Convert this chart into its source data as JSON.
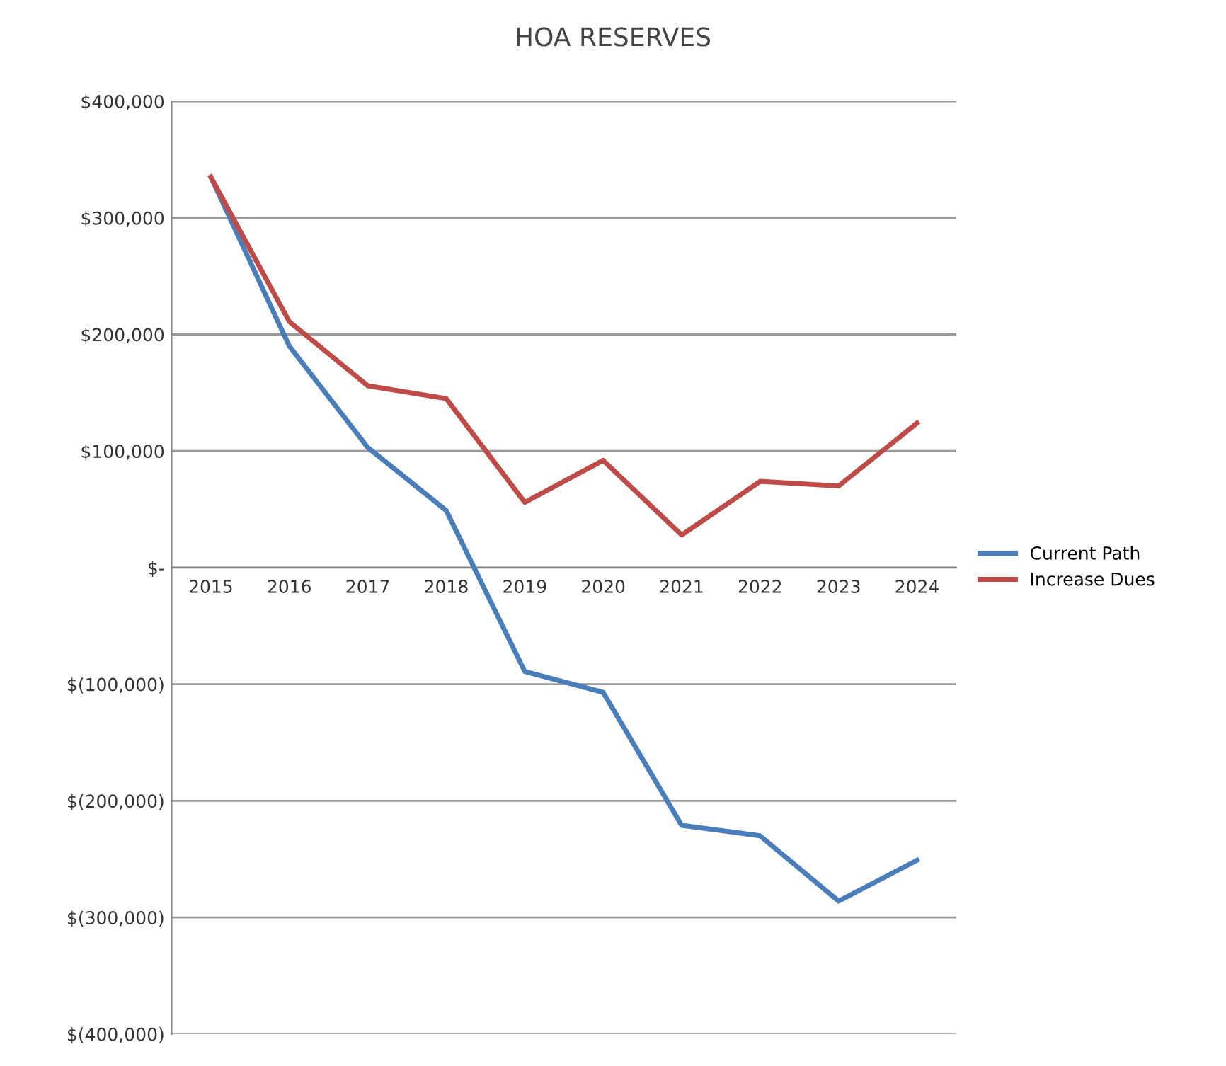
{
  "chart_data": {
    "type": "line",
    "title": "HOA RESERVES",
    "categories": [
      "2015",
      "2016",
      "2017",
      "2018",
      "2019",
      "2020",
      "2021",
      "2022",
      "2023",
      "2024"
    ],
    "series": [
      {
        "name": "Current Path",
        "color": "#4a7ebb",
        "values": [
          335000,
          190000,
          103000,
          49000,
          -89000,
          -107000,
          -221000,
          -230000,
          -286000,
          -251000
        ]
      },
      {
        "name": "Increase Dues",
        "color": "#be4b48",
        "values": [
          335000,
          211000,
          156000,
          145000,
          56000,
          92000,
          28000,
          74000,
          70000,
          124000
        ]
      }
    ],
    "ylim": [
      -400000,
      400000
    ],
    "yticks": [
      {
        "value": -400000,
        "label": "$(400,000)"
      },
      {
        "value": -300000,
        "label": "$(300,000)"
      },
      {
        "value": -200000,
        "label": "$(200,000)"
      },
      {
        "value": -100000,
        "label": "$(100,000)"
      },
      {
        "value": 0,
        "label": "$-"
      },
      {
        "value": 100000,
        "label": "$100,000"
      },
      {
        "value": 200000,
        "label": "$200,000"
      },
      {
        "value": 300000,
        "label": "$300,000"
      },
      {
        "value": 400000,
        "label": "$400,000"
      }
    ],
    "grid": "y",
    "legend": "right",
    "marker": "none",
    "line_style": "solid"
  }
}
